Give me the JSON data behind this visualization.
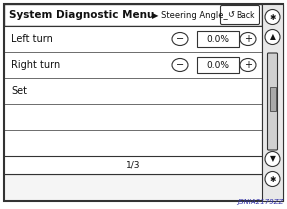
{
  "bg_color": "#ffffff",
  "outer_bg": "#f5f5f5",
  "screen_bg": "#ffffff",
  "title_text": "System Diagnostic Menu",
  "title_arrow": "▶",
  "title_sub": " Steering Angle_",
  "back_btn": "Back",
  "rows": [
    "Left turn",
    "Right turn",
    "Set"
  ],
  "values": [
    "0.0%",
    "0.0%"
  ],
  "footer": "1/3",
  "watermark": "JSNIA2179ZZ",
  "border_color": "#333333",
  "text_color": "#111111",
  "watermark_color": "#3333aa",
  "title_fontsize": 7.5,
  "sub_fontsize": 6.0,
  "row_fontsize": 7.0,
  "val_fontsize": 6.5,
  "footer_fontsize": 6.5,
  "btn_fontsize": 5.5
}
